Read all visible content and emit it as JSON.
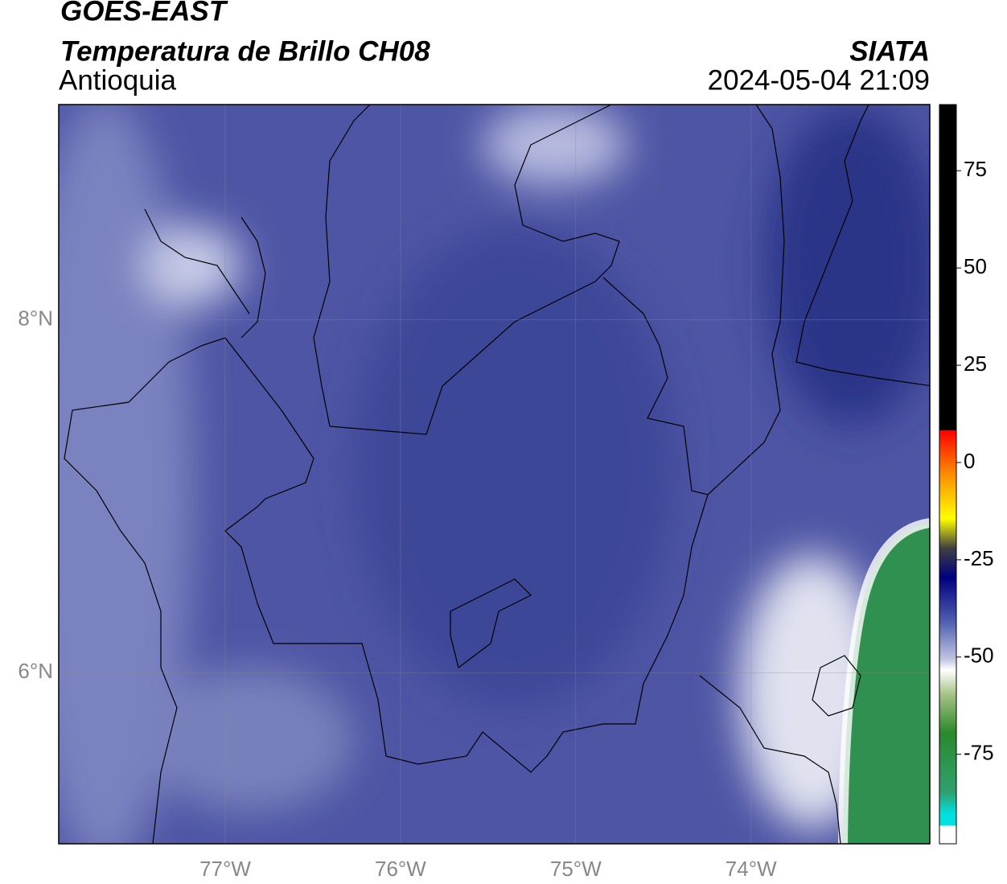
{
  "header": {
    "source": "GOES-EAST",
    "title": "Temperatura de Brillo CH08",
    "region": "Antioquia",
    "brand": "SIATA",
    "datetime": "2024-05-04 21:09"
  },
  "map": {
    "xlim": [
      -77.95,
      -72.98
    ],
    "ylim": [
      5.03,
      9.22
    ],
    "xticks": [
      {
        "value": -77,
        "label": "77°W"
      },
      {
        "value": -76,
        "label": "76°W"
      },
      {
        "value": -75,
        "label": "75°W"
      },
      {
        "value": -74,
        "label": "74°W"
      }
    ],
    "yticks": [
      {
        "value": 6,
        "label": "6°N"
      },
      {
        "value": 8,
        "label": "8°N"
      }
    ],
    "grid": true
  },
  "colorbar": {
    "lim": [
      -98,
      92
    ],
    "ticks": [
      -75,
      -50,
      -25,
      0,
      25,
      50,
      75
    ]
  }
}
